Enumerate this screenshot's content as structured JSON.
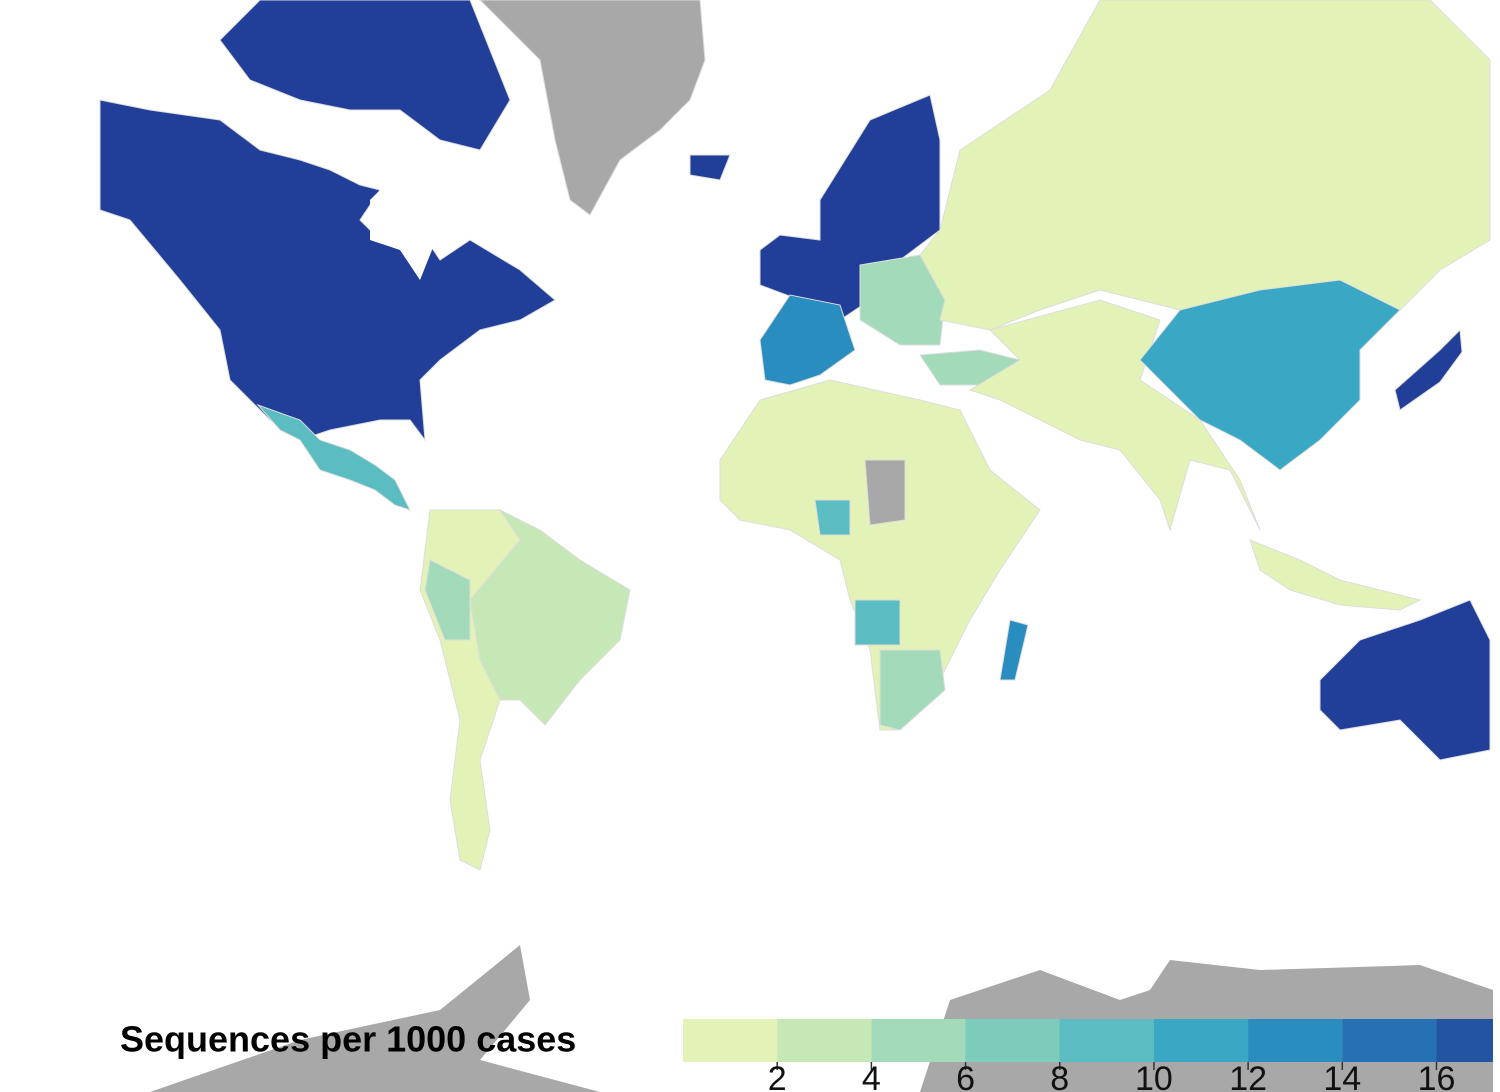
{
  "legend": {
    "title": "Sequences per 1000 cases",
    "lim": [
      0,
      17.2
    ],
    "ticks": [
      2,
      4,
      6,
      8,
      10,
      12,
      14,
      16
    ],
    "colors": [
      "#e3f2b6",
      "#c6e8b6",
      "#a3dab9",
      "#7dccbb",
      "#5bbdc1",
      "#3aa7c5",
      "#2a8dbf",
      "#2571b3",
      "#2354a1"
    ]
  }
}
